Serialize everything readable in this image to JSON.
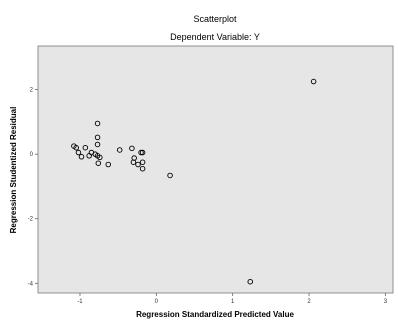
{
  "chart_data": {
    "type": "scatter",
    "title": "Scatterplot",
    "subtitle": "Dependent Variable: Y",
    "xlabel": "Regression Standardized Predicted Value",
    "ylabel": "Regression Studentized Residual",
    "xlim": [
      -1.55,
      3.1
    ],
    "ylim": [
      -4.3,
      3.35
    ],
    "xticks": [
      -1,
      0,
      1,
      2,
      3
    ],
    "yticks": [
      -4,
      -2,
      0,
      2
    ],
    "grid": false,
    "plot_background": "#e6e6e6",
    "points": [
      {
        "x": -1.08,
        "y": 0.25
      },
      {
        "x": -1.05,
        "y": 0.2
      },
      {
        "x": -1.02,
        "y": 0.05
      },
      {
        "x": -0.98,
        "y": -0.08
      },
      {
        "x": -0.93,
        "y": 0.2
      },
      {
        "x": -0.88,
        "y": -0.05
      },
      {
        "x": -0.85,
        "y": 0.05
      },
      {
        "x": -0.8,
        "y": 0.0
      },
      {
        "x": -0.77,
        "y": -0.05
      },
      {
        "x": -0.77,
        "y": 0.3
      },
      {
        "x": -0.77,
        "y": 0.52
      },
      {
        "x": -0.77,
        "y": 0.95
      },
      {
        "x": -0.76,
        "y": -0.28
      },
      {
        "x": -0.74,
        "y": -0.1
      },
      {
        "x": -0.63,
        "y": -0.32
      },
      {
        "x": -0.48,
        "y": 0.13
      },
      {
        "x": -0.32,
        "y": 0.18
      },
      {
        "x": -0.3,
        "y": -0.25
      },
      {
        "x": -0.29,
        "y": -0.12
      },
      {
        "x": -0.24,
        "y": -0.32
      },
      {
        "x": -0.2,
        "y": 0.05
      },
      {
        "x": -0.18,
        "y": 0.05
      },
      {
        "x": -0.18,
        "y": -0.25
      },
      {
        "x": -0.18,
        "y": -0.45
      },
      {
        "x": 0.18,
        "y": -0.66
      },
      {
        "x": 1.23,
        "y": -3.95
      },
      {
        "x": 2.06,
        "y": 2.25
      }
    ]
  }
}
